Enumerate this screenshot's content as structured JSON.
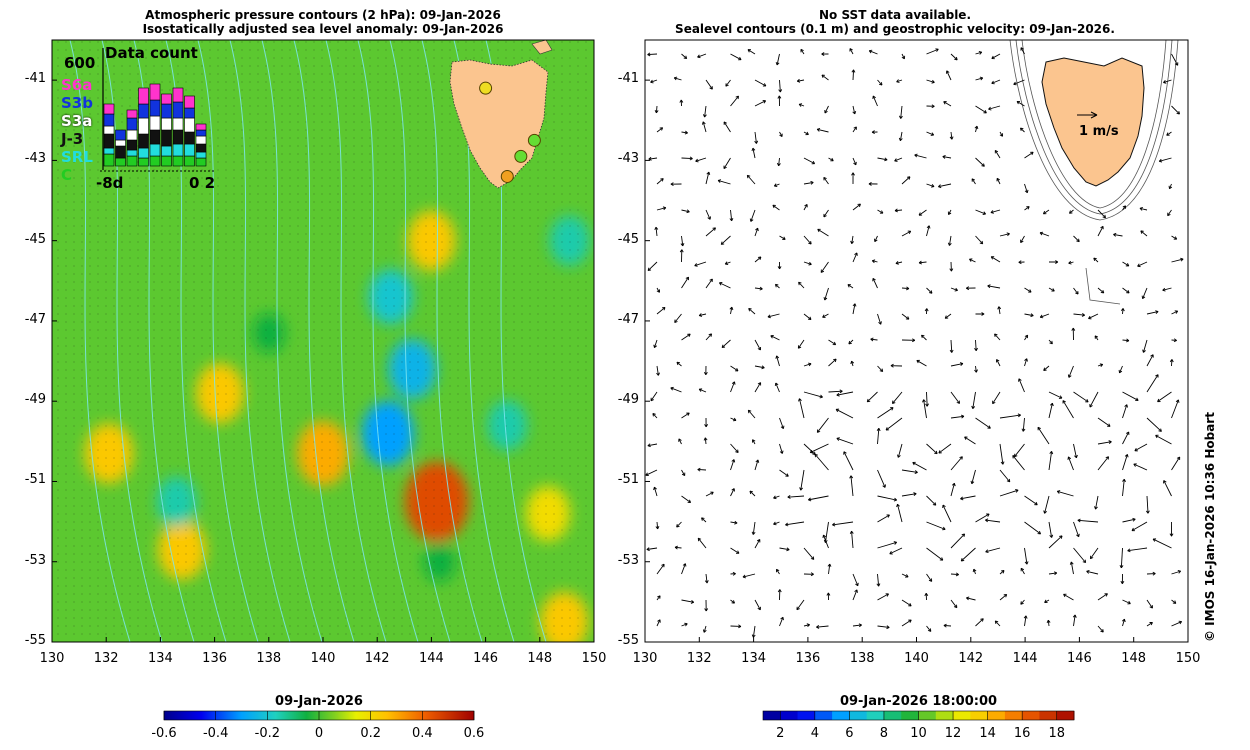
{
  "left_panel": {
    "title_line1": "Atmospheric pressure contours (2 hPa): 09-Jan-2026",
    "title_line2": "Isostatically adjusted sea level anomaly: 09-Jan-2026",
    "colorbar_title": "09-Jan-2026",
    "colorbar_ticks": [
      "-0.6",
      "-0.4",
      "-0.2",
      "0",
      "0.2",
      "0.4",
      "0.6"
    ]
  },
  "right_panel": {
    "title_line1": "No SST data available.",
    "title_line2": "Sealevel contours (0.1 m) and geostrophic velocity: 09-Jan-2026.",
    "scale_label": "1 m/s",
    "colorbar_title": "09-Jan-2026 18:00:00",
    "colorbar_ticks": [
      "2",
      "4",
      "6",
      "8",
      "10",
      "12",
      "14",
      "16",
      "18"
    ]
  },
  "data_count_inset": {
    "title": "Data count",
    "max_label": "600",
    "missions": [
      "S6a",
      "S3b",
      "S3a",
      "J-3",
      "SRL",
      "C"
    ],
    "mission_colors": [
      "#ff33cc",
      "#1133dd",
      "#ffffff",
      "#111111",
      "#22dddd",
      "#22cc22"
    ],
    "x_left_label": "-8d",
    "x_right_label": "0 2"
  },
  "credit": "© IMOS 16-Jan-2026 10:36 Hobart",
  "chart_data": [
    {
      "type": "heatmap",
      "title": "Atmospheric pressure contours (2 hPa): 09-Jan-2026 / Isostatically adjusted sea level anomaly: 09-Jan-2026",
      "x_ticks": [
        "130",
        "132",
        "134",
        "136",
        "138",
        "140",
        "142",
        "144",
        "146",
        "148",
        "150"
      ],
      "y_ticks": [
        "-41",
        "-43",
        "-45",
        "-47",
        "-49",
        "-51",
        "-53",
        "-55"
      ],
      "xlim": [
        130,
        150
      ],
      "ylim": [
        -55,
        -40
      ],
      "colorbar": {
        "min": -0.6,
        "max": 0.6
      },
      "notable_values": [
        {
          "lon": 144.2,
          "lat": -51.5,
          "value": 0.45
        },
        {
          "lon": 140.0,
          "lat": -50.3,
          "value": 0.3
        },
        {
          "lon": 136.2,
          "lat": -48.8,
          "value": 0.25
        },
        {
          "lon": 144.0,
          "lat": -45.0,
          "value": 0.25
        },
        {
          "lon": 132.1,
          "lat": -50.3,
          "value": 0.25
        },
        {
          "lon": 134.8,
          "lat": -52.7,
          "value": 0.25
        },
        {
          "lon": 148.9,
          "lat": -54.5,
          "value": 0.25
        },
        {
          "lon": 148.3,
          "lat": -51.8,
          "value": 0.2
        },
        {
          "lon": 143.3,
          "lat": -48.2,
          "value": -0.25
        },
        {
          "lon": 142.4,
          "lat": -49.8,
          "value": -0.3
        },
        {
          "lon": 142.5,
          "lat": -46.4,
          "value": -0.2
        },
        {
          "lon": 149.1,
          "lat": -45.0,
          "value": -0.15
        },
        {
          "lon": 146.8,
          "lat": -49.6,
          "value": -0.15
        },
        {
          "lon": 134.6,
          "lat": -51.5,
          "value": -0.15
        },
        {
          "lon": 138.0,
          "lat": -47.3,
          "value": -0.05
        },
        {
          "lon": 144.3,
          "lat": -53.0,
          "value": -0.05
        }
      ],
      "stations": [
        {
          "lon": 146.0,
          "lat": -41.2,
          "color": "#eedd22"
        },
        {
          "lon": 147.8,
          "lat": -42.5,
          "color": "#66dd33"
        },
        {
          "lon": 147.3,
          "lat": -42.9,
          "color": "#66dd33"
        },
        {
          "lon": 146.8,
          "lat": -43.4,
          "color": "#f0a020"
        }
      ]
    },
    {
      "type": "scatter",
      "title": "No SST data available. / Sealevel contours (0.1 m) and geostrophic velocity: 09-Jan-2026.",
      "x_ticks": [
        "130",
        "132",
        "134",
        "136",
        "138",
        "140",
        "142",
        "144",
        "146",
        "148",
        "150"
      ],
      "y_ticks": [
        "-41",
        "-43",
        "-45",
        "-47",
        "-49",
        "-51",
        "-53",
        "-55"
      ],
      "xlim": [
        130,
        150
      ],
      "ylim": [
        -55,
        -40
      ],
      "reference_vector": {
        "value": 1,
        "label": "1 m/s"
      },
      "colorbar": {
        "min": 1,
        "max": 19
      }
    }
  ]
}
